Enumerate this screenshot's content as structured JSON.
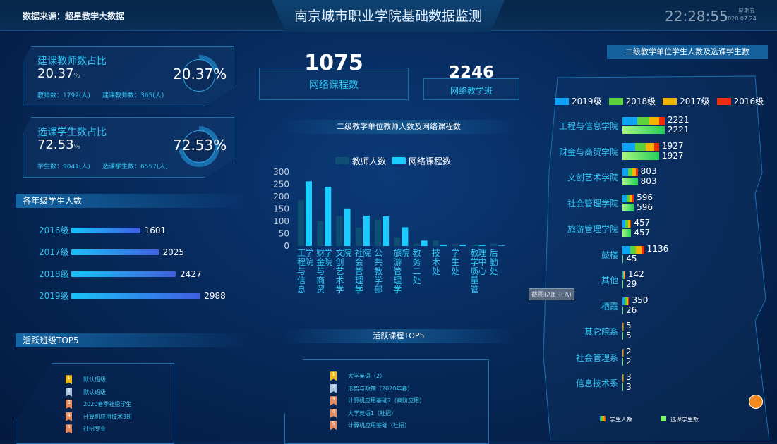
{
  "header": {
    "title": "南京城市职业学院基础数据监测",
    "source": "数据来源：超星教学大数据",
    "time": "22:28:55",
    "weekday": "星期五",
    "date": "2020.07.24"
  },
  "cards": [
    {
      "title": "建课教师数占比",
      "value": "20.37",
      "unit": "%",
      "big": "20.37%",
      "ratio": 0.2037,
      "stat1": "教师数：1792(人)",
      "stat2": "建课教师数：365(人)"
    },
    {
      "title": "选课学生数占比",
      "value": "72.53",
      "unit": "%",
      "big": "72.53%",
      "ratio": 0.7253,
      "stat1": "学生数：9041(人)",
      "stat2": "选课学生数：6557(人)"
    }
  ],
  "grades": {
    "title": "各年级学生人数",
    "items": [
      {
        "label": "2016级",
        "value": 1601
      },
      {
        "label": "2017级",
        "value": 2025
      },
      {
        "label": "2018级",
        "value": 2427
      },
      {
        "label": "2019级",
        "value": 2988
      }
    ]
  },
  "kpis": {
    "courses": {
      "value": "1075",
      "label": "网络课程数"
    },
    "classes": {
      "value": "2246",
      "label": "网络教学班"
    }
  },
  "top_classes": {
    "title": "活跃班级TOP5",
    "items": [
      "默认班级",
      "默认班级",
      "2020春季社招学生",
      "计算机应用技术3班",
      "社招专业"
    ]
  },
  "top_courses": {
    "title": "活跃课程TOP5",
    "items": [
      "大学英语（2）",
      "形势与政策（2020年春）",
      "计算机应用基础2（高阶应用）",
      "大学英语1（社招）",
      "计算机应用基础（社招）"
    ]
  },
  "rank_colors": [
    "#f5b914",
    "#a9c3dc",
    "#e88a5c",
    "#e88a5c",
    "#e88a5c"
  ],
  "tooltip": "截图(Alt + A)",
  "chart_data": [
    {
      "type": "bar",
      "title": "二级教学单位教师人数及网络课程数",
      "categories": [
        "工程与信息学院",
        "财金与商贸学院",
        "文创艺术学院",
        "社会管理学院",
        "公共教学部",
        "旅游管理学院",
        "教务二处",
        "技术处",
        "学生处",
        "教学质量管理中心",
        "后勤处"
      ],
      "series": [
        {
          "name": "教师人数",
          "color": "#0f4f73",
          "values": [
            185,
            102,
            122,
            75,
            106,
            35,
            10,
            22,
            8,
            3,
            10
          ]
        },
        {
          "name": "网络课程数",
          "color": "#1ccbff",
          "values": [
            262,
            240,
            152,
            123,
            120,
            76,
            22,
            6,
            6,
            3,
            2
          ]
        }
      ],
      "ylim": [
        0,
        300
      ],
      "yticks": [
        0,
        50,
        100,
        150,
        200,
        250,
        300
      ],
      "legend": "top"
    },
    {
      "type": "bar",
      "orientation": "horizontal",
      "title": "二级教学单位学生人数及选课学生数",
      "stack_legend": [
        {
          "name": "2019级",
          "color": "#0aa3f5"
        },
        {
          "name": "2018级",
          "color": "#5bd23a"
        },
        {
          "name": "2017级",
          "color": "#f5b400"
        },
        {
          "name": "2016级",
          "color": "#f52a0a"
        }
      ],
      "categories": [
        "工程与信息学院",
        "财金与商贸学院",
        "文创艺术学院",
        "社会管理学院",
        "旅游管理学院",
        "鼓楼",
        "其他",
        "栖霞",
        "其它院系",
        "社会管理系",
        "信息技术系"
      ],
      "series": [
        {
          "name": "学生人数",
          "values": [
            2221,
            1927,
            803,
            596,
            457,
            1136,
            142,
            350,
            5,
            2,
            3
          ]
        },
        {
          "name": "选课学生数",
          "values": [
            2221,
            1927,
            803,
            596,
            457,
            45,
            29,
            26,
            5,
            2,
            3
          ]
        }
      ],
      "legend": "bottom"
    }
  ]
}
